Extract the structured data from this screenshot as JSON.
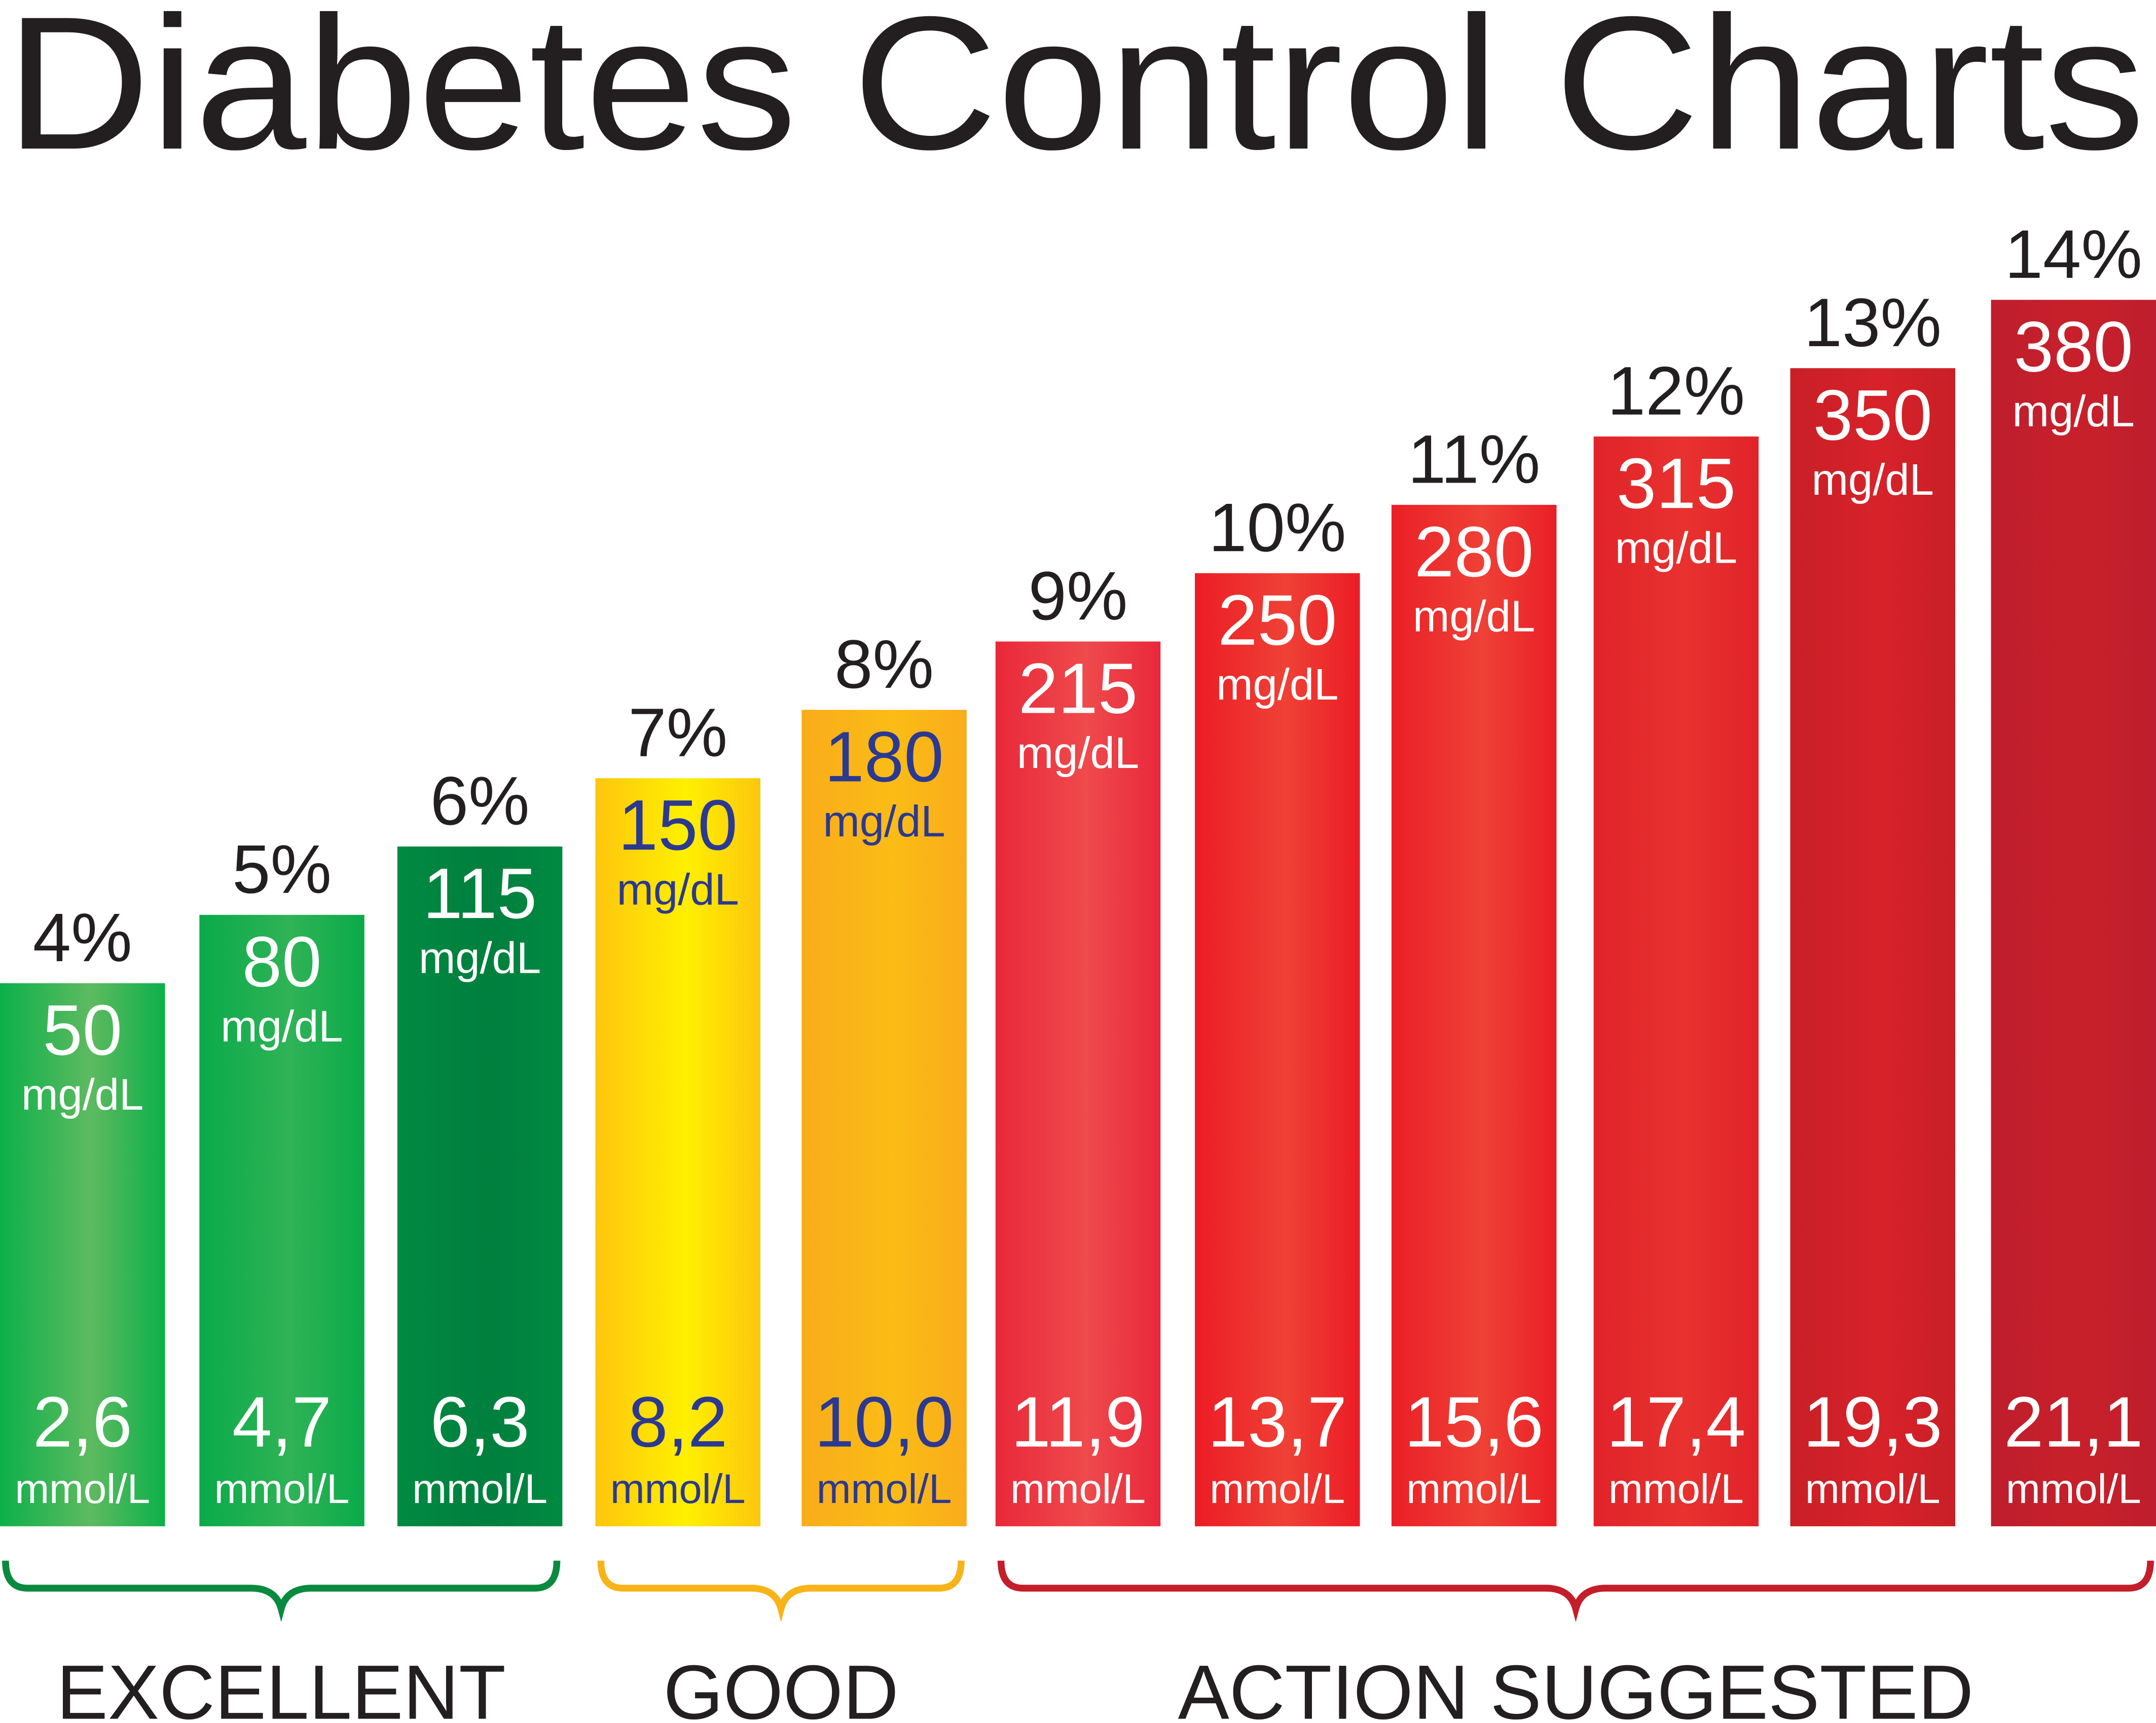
{
  "chart_data": {
    "type": "bar",
    "title": "Diabetes Control Charts",
    "categories": [
      "4%",
      "5%",
      "6%",
      "7%",
      "8%",
      "9%",
      "10%",
      "11%",
      "12%",
      "13%",
      "14%"
    ],
    "a1c_percent": [
      4,
      5,
      6,
      7,
      8,
      9,
      10,
      11,
      12,
      13,
      14
    ],
    "series": [
      {
        "name": "mg/dL",
        "values": [
          "50",
          "80",
          "115",
          "150",
          "180",
          "215",
          "250",
          "280",
          "315",
          "350",
          "380"
        ]
      },
      {
        "name": "mmol/L",
        "values": [
          "2,6",
          "4,7",
          "6,3",
          "8,2",
          "10,0",
          "11,9",
          "13,7",
          "15,6",
          "17,4",
          "19,3",
          "21,1"
        ]
      }
    ],
    "unit_mg": "mg/dL",
    "unit_mmol": "mmol/L",
    "ylim": [
      0,
      14
    ],
    "grid": false,
    "bar_colors": [
      [
        "#0cb04a",
        "#5eba60"
      ],
      [
        "#0aaa4a",
        "#2fb356"
      ],
      [
        "#008a41",
        "#007f3d"
      ],
      [
        "#fdc60e",
        "#fff000"
      ],
      [
        "#f9ac1a",
        "#fbbc16"
      ],
      [
        "#e9283a",
        "#ef4a4c"
      ],
      [
        "#ec1c24",
        "#ef4136"
      ],
      [
        "#ea1f26",
        "#ef4136"
      ],
      [
        "#e0232a",
        "#e8322f"
      ],
      [
        "#c81f26",
        "#d8222a"
      ],
      [
        "#be1e2d",
        "#c8202a"
      ]
    ],
    "text_colors": [
      "#ffffff",
      "#ffffff",
      "#ffffff",
      "#2b3990",
      "#2b3990",
      "#ffffff",
      "#ffffff",
      "#ffffff",
      "#ffffff",
      "#ffffff",
      "#ffffff"
    ],
    "groups": [
      {
        "label": "EXCELLENT",
        "bars": [
          0,
          2
        ],
        "color": "#0a8a3e"
      },
      {
        "label": "GOOD",
        "bars": [
          3,
          4
        ],
        "color": "#f7b418"
      },
      {
        "label": "ACTION SUGGESTED",
        "bars": [
          5,
          10
        ],
        "color": "#c41e2a"
      }
    ]
  }
}
